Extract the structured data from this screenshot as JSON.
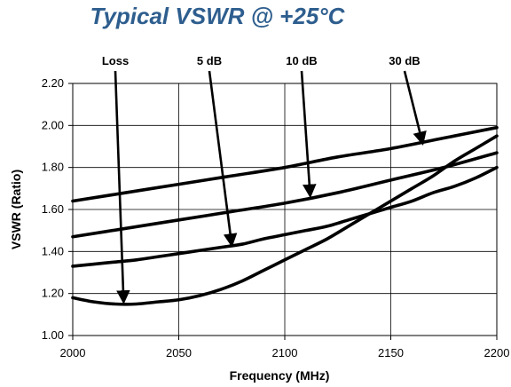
{
  "chart_data": {
    "type": "line",
    "title": "Typical VSWR @ +25°C",
    "xlabel": "Frequency (MHz)",
    "ylabel": "VSWR (Ratio)",
    "xlim": [
      2000,
      2200
    ],
    "ylim": [
      1.0,
      2.2
    ],
    "xticks": [
      "2000",
      "2050",
      "2100",
      "2150",
      "2200"
    ],
    "yticks": [
      "1.00",
      "1.20",
      "1.40",
      "1.60",
      "1.80",
      "2.00",
      "2.20"
    ],
    "grid": true,
    "legend": "none",
    "line_color": "#000000",
    "title_color": "#2E5E8E",
    "series": [
      {
        "name": "Loss",
        "x": [
          2000,
          2010,
          2020,
          2030,
          2040,
          2050,
          2060,
          2070,
          2080,
          2090,
          2100,
          2110,
          2120,
          2130,
          2140,
          2150,
          2160,
          2170,
          2180,
          2190,
          2200
        ],
        "y": [
          1.18,
          1.16,
          1.15,
          1.15,
          1.16,
          1.17,
          1.19,
          1.22,
          1.26,
          1.31,
          1.36,
          1.41,
          1.46,
          1.52,
          1.58,
          1.64,
          1.7,
          1.76,
          1.83,
          1.89,
          1.95
        ]
      },
      {
        "name": "5 dB",
        "x": [
          2000,
          2010,
          2020,
          2030,
          2040,
          2050,
          2060,
          2070,
          2080,
          2090,
          2100,
          2110,
          2120,
          2130,
          2140,
          2150,
          2160,
          2170,
          2180,
          2190,
          2200
        ],
        "y": [
          1.33,
          1.34,
          1.35,
          1.36,
          1.375,
          1.39,
          1.405,
          1.42,
          1.435,
          1.46,
          1.48,
          1.5,
          1.52,
          1.55,
          1.58,
          1.61,
          1.64,
          1.68,
          1.71,
          1.75,
          1.8
        ]
      },
      {
        "name": "10 dB",
        "x": [
          2000,
          2025,
          2050,
          2075,
          2100,
          2125,
          2150,
          2175,
          2200
        ],
        "y": [
          1.47,
          1.51,
          1.55,
          1.59,
          1.63,
          1.68,
          1.74,
          1.8,
          1.87
        ]
      },
      {
        "name": "30 dB",
        "x": [
          2000,
          2025,
          2050,
          2075,
          2100,
          2125,
          2150,
          2175,
          2200
        ],
        "y": [
          1.64,
          1.68,
          1.72,
          1.76,
          1.8,
          1.85,
          1.89,
          1.94,
          1.99
        ]
      }
    ],
    "annotations": [
      {
        "text": "Loss",
        "series": "Loss",
        "points_to_x": 2024,
        "points_to_y": 1.16
      },
      {
        "text": "5 dB",
        "series": "5 dB",
        "points_to_x": 2075,
        "points_to_y": 1.43
      },
      {
        "text": "10 dB",
        "series": "10 dB",
        "points_to_x": 2112,
        "points_to_y": 1.665
      },
      {
        "text": "30 dB",
        "series": "30 dB",
        "points_to_x": 2165,
        "points_to_y": 1.915
      }
    ]
  }
}
